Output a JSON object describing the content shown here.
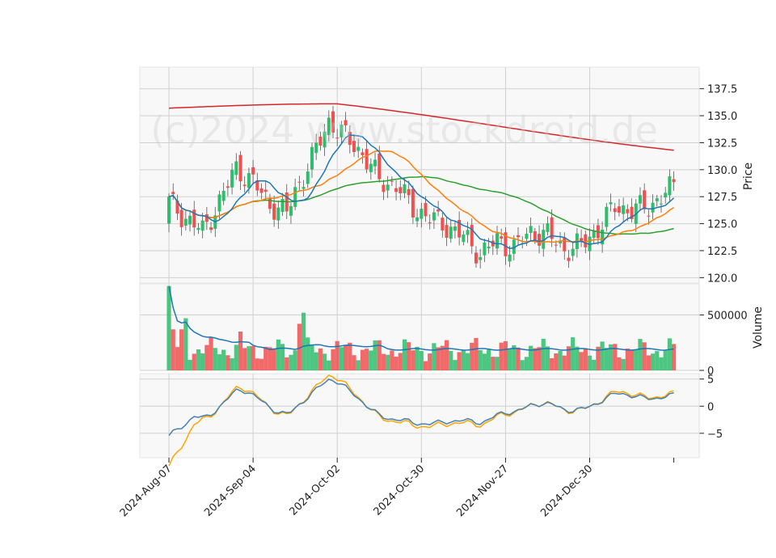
{
  "chart_data": {
    "type": "candlestick",
    "watermark": "(c)2024 www.stockdroid.de",
    "colors": {
      "up": "#2ebd6b",
      "down": "#f05050",
      "sma10": "#1f77b4",
      "sma20": "#ff7f0e",
      "sma50": "#2ca02c",
      "sma200": "#d62728",
      "volume_ma": "#1f77b4",
      "macd": "#4682b4",
      "signal": "#ffa500",
      "grid": "#d0d0d0",
      "panel_bg": "#f8f8f8"
    },
    "x_tick_labels": [
      "2024-Aug-07",
      "2024-Sep-04",
      "2024-Oct-02",
      "2024-Oct-30",
      "2024-Nov-27",
      "2024-Dec-30"
    ],
    "price_panel": {
      "ylabel": "Price",
      "ylim": [
        119.5,
        139.5
      ],
      "yticks": [
        120.0,
        122.5,
        125.0,
        127.5,
        130.0,
        132.5,
        135.0,
        137.5
      ],
      "ytick_labels": [
        "120.0",
        "122.5",
        "125.0",
        "127.5",
        "130.0",
        "132.5",
        "135.0",
        "137.5"
      ]
    },
    "volume_panel": {
      "ylabel": "Volume",
      "ylim": [
        0,
        780000
      ],
      "yticks": [
        0,
        500000
      ],
      "ytick_labels": [
        "0",
        "500000"
      ]
    },
    "macd_panel": {
      "ylim": [
        -9.5,
        6
      ],
      "yticks": [
        -5,
        0,
        5
      ],
      "ytick_labels": [
        "−5",
        "0",
        "5"
      ]
    }
  }
}
